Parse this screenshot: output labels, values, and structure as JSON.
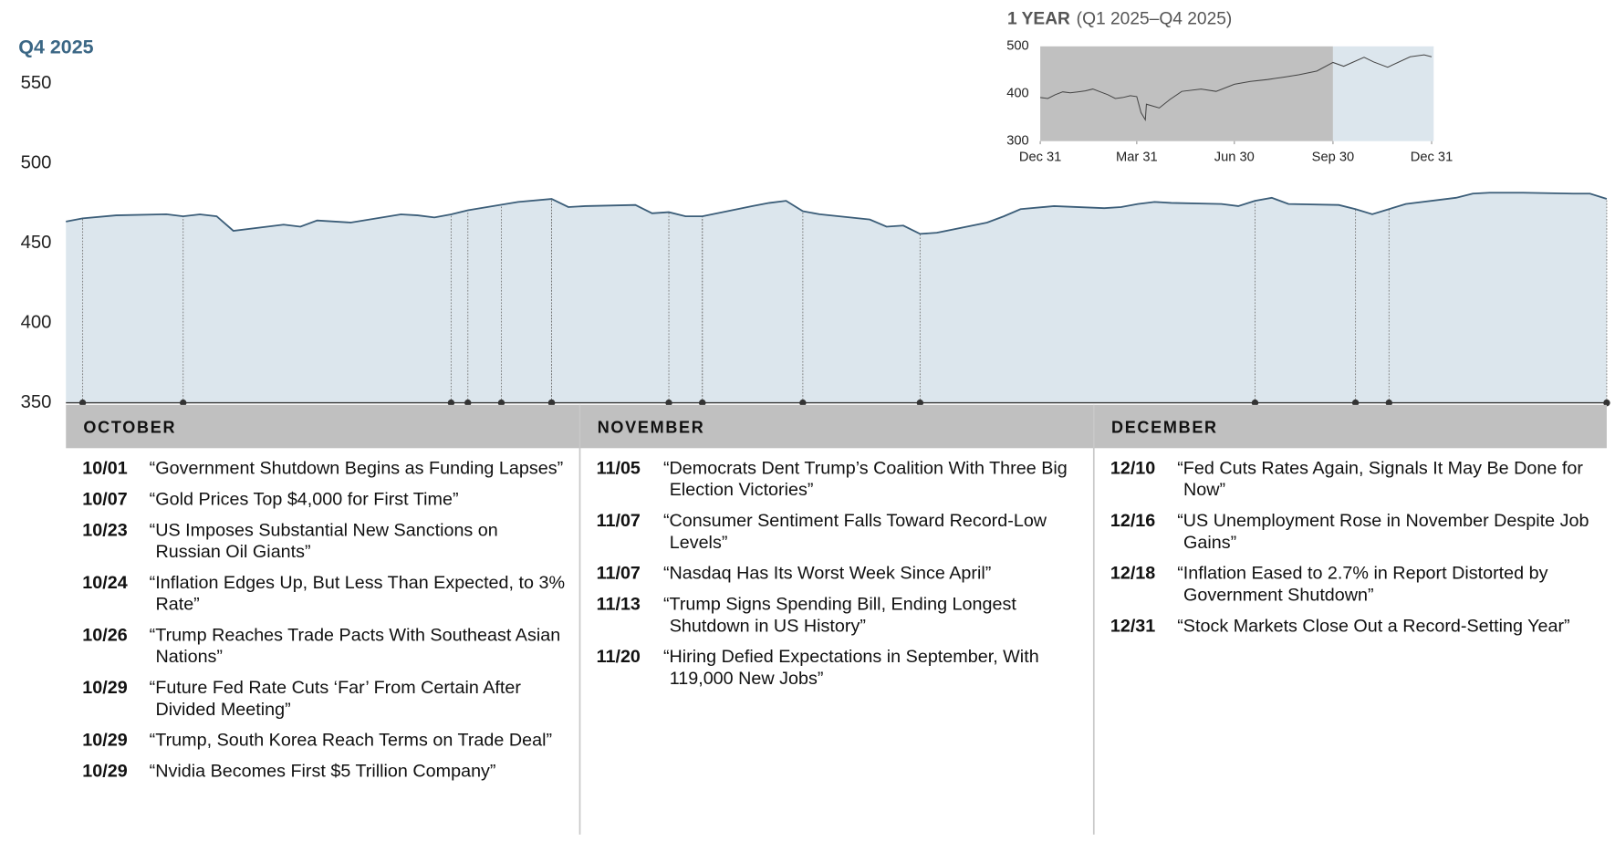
{
  "chart_data": [
    {
      "type": "area",
      "title": "Q4 2025",
      "color": "#3b5d78",
      "fill": "#dce6ed",
      "x": [
        "2025-09-30",
        "2025-10-01",
        "2025-10-03",
        "2025-10-06",
        "2025-10-07",
        "2025-10-08",
        "2025-10-09",
        "2025-10-10",
        "2025-10-13",
        "2025-10-14",
        "2025-10-15",
        "2025-10-17",
        "2025-10-20",
        "2025-10-21",
        "2025-10-22",
        "2025-10-23",
        "2025-10-24",
        "2025-10-27",
        "2025-10-29",
        "2025-10-30",
        "2025-10-31",
        "2025-11-03",
        "2025-11-04",
        "2025-11-05",
        "2025-11-06",
        "2025-11-07",
        "2025-11-10",
        "2025-11-11",
        "2025-11-12",
        "2025-11-13",
        "2025-11-14",
        "2025-11-17",
        "2025-11-18",
        "2025-11-19",
        "2025-11-20",
        "2025-11-21",
        "2025-11-24",
        "2025-11-25",
        "2025-11-26",
        "2025-11-28",
        "2025-12-01",
        "2025-12-02",
        "2025-12-03",
        "2025-12-04",
        "2025-12-05",
        "2025-12-08",
        "2025-12-09",
        "2025-12-10",
        "2025-12-11",
        "2025-12-12",
        "2025-12-15",
        "2025-12-16",
        "2025-12-17",
        "2025-12-18",
        "2025-12-19",
        "2025-12-22",
        "2025-12-23",
        "2025-12-24",
        "2025-12-26",
        "2025-12-29",
        "2025-12-30",
        "2025-12-31"
      ],
      "values": [
        463.5,
        465.5,
        467.4,
        468.1,
        466.8,
        468,
        466.8,
        457.7,
        461.6,
        460.3,
        464.2,
        462.9,
        468,
        467.4,
        466.1,
        468,
        470.6,
        475.8,
        477.7,
        472.6,
        473.2,
        473.9,
        468.7,
        469.4,
        466.8,
        466.8,
        473.2,
        475.2,
        476.5,
        470,
        468.1,
        464.8,
        460.3,
        461,
        455.8,
        456.5,
        462.9,
        466.8,
        471.3,
        473.2,
        471.9,
        472.6,
        474.5,
        475.8,
        475.2,
        474.5,
        473.2,
        476.5,
        478.4,
        474.5,
        473.9,
        471.3,
        468.1,
        471.3,
        474.5,
        478.4,
        481,
        481.6,
        481.6,
        481,
        481,
        477.7
      ],
      "xlim": [
        "2025-09-30",
        "2025-12-31"
      ],
      "ylim": [
        350,
        550
      ],
      "yticks": [
        350,
        400,
        450,
        500,
        550
      ]
    },
    {
      "type": "line",
      "title": "1 YEAR",
      "subtitle": "(Q1 2025–Q4 2025)",
      "color": "#444444",
      "background": "#c0c0c0",
      "highlight_color": "#dce6ed",
      "highlight_from": "2025-09-30",
      "x": [
        "2024-12-31",
        "2025-01-07",
        "2025-01-14",
        "2025-01-21",
        "2025-01-28",
        "2025-02-04",
        "2025-02-11",
        "2025-02-18",
        "2025-02-25",
        "2025-03-04",
        "2025-03-11",
        "2025-03-18",
        "2025-03-25",
        "2025-03-31",
        "2025-04-04",
        "2025-04-08",
        "2025-04-09",
        "2025-04-21",
        "2025-05-01",
        "2025-05-12",
        "2025-05-30",
        "2025-06-13",
        "2025-06-30",
        "2025-07-15",
        "2025-07-31",
        "2025-08-15",
        "2025-08-29",
        "2025-09-15",
        "2025-09-30",
        "2025-10-10",
        "2025-10-29",
        "2025-11-07",
        "2025-11-20",
        "2025-12-11",
        "2025-12-24",
        "2025-12-31"
      ],
      "values": [
        392,
        390,
        398,
        404,
        402,
        404,
        406,
        410,
        404,
        398,
        390,
        392,
        396,
        394,
        360,
        345,
        378,
        370,
        388,
        405,
        410,
        405,
        420,
        426,
        430,
        435,
        440,
        448,
        466,
        458,
        477,
        467,
        456,
        478,
        482,
        478
      ],
      "xlim": [
        "2024-12-31",
        "2025-12-31"
      ],
      "ylim": [
        300,
        500
      ],
      "yticks": [
        300,
        400,
        500
      ],
      "xticks": [
        {
          "value": "2024-12-31",
          "label": "Dec 31"
        },
        {
          "value": "2025-03-31",
          "label": "Mar 31"
        },
        {
          "value": "2025-06-30",
          "label": "Jun 30"
        },
        {
          "value": "2025-09-30",
          "label": "Sep 30"
        },
        {
          "value": "2025-12-31",
          "label": "Dec 31"
        }
      ]
    }
  ],
  "timeline": {
    "months": [
      {
        "name": "OCTOBER",
        "events": [
          {
            "date": "10/01",
            "headline": "“Government Shutdown Begins as Funding Lapses”"
          },
          {
            "date": "10/07",
            "headline": "“Gold Prices Top $4,000 for First Time”"
          },
          {
            "date": "10/23",
            "headline": "“US Imposes Substantial New Sanctions on Russian Oil Giants”"
          },
          {
            "date": "10/24",
            "headline": "“Inflation Edges Up, But Less Than Expected, to 3% Rate”"
          },
          {
            "date": "10/26",
            "headline": "“Trump Reaches Trade Pacts With Southeast Asian Nations”"
          },
          {
            "date": "10/29",
            "headline": "“Future Fed Rate Cuts ‘Far’ From Certain After Divided Meeting”"
          },
          {
            "date": "10/29",
            "headline": "“Trump, South Korea Reach Terms on Trade Deal”"
          },
          {
            "date": "10/29",
            "headline": "“Nvidia Becomes First $5 Trillion Company”"
          }
        ]
      },
      {
        "name": "NOVEMBER",
        "events": [
          {
            "date": "11/05",
            "headline": "“Democrats Dent Trump’s Coalition With Three Big Election Victories”"
          },
          {
            "date": "11/07",
            "headline": "“Consumer Sentiment Falls Toward Record-Low Levels”"
          },
          {
            "date": "11/07",
            "headline": "“Nasdaq Has Its Worst Week Since April”"
          },
          {
            "date": "11/13",
            "headline": "“Trump Signs Spending Bill, Ending Longest Shutdown in US History”"
          },
          {
            "date": "11/20",
            "headline": "“Hiring Defied Expectations in September, With 119,000 New Jobs”"
          }
        ]
      },
      {
        "name": "DECEMBER",
        "events": [
          {
            "date": "12/10",
            "headline": "“Fed Cuts Rates Again, Signals It May Be Done for Now”"
          },
          {
            "date": "12/16",
            "headline": "“US Unemployment Rose in November Despite Job Gains”"
          },
          {
            "date": "12/18",
            "headline": "“Inflation Eased to 2.7% in Report Distorted by Government Shutdown”"
          },
          {
            "date": "12/31",
            "headline": "“Stock Markets Close Out a Record-Setting Year”"
          }
        ]
      }
    ]
  }
}
